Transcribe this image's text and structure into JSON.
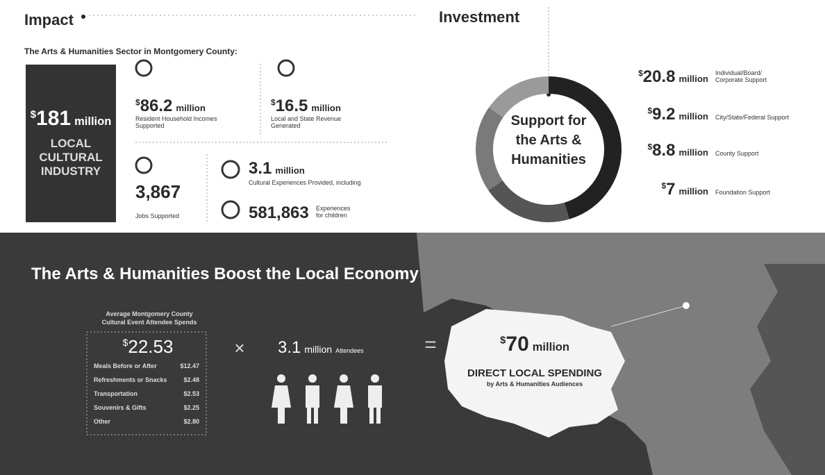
{
  "impact": {
    "title": "Impact",
    "subtitle": "The Arts & Humanities Sector in Montgomery County:",
    "total": {
      "currency": "$",
      "amount": "181",
      "unit": "million",
      "label": [
        "LOCAL",
        "CULTURAL",
        "INDUSTRY"
      ]
    },
    "stats": [
      {
        "currency": "$",
        "amount": "86.2",
        "unit": "million",
        "label": [
          "Resident Household Incomes",
          "Supported"
        ]
      },
      {
        "currency": "$",
        "amount": "16.5",
        "unit": "million",
        "label": [
          "Local and State Revenue",
          "Generated"
        ]
      },
      {
        "amount": "3,867",
        "label": [
          "Jobs Supported"
        ]
      },
      {
        "amount": "3.1",
        "unit": "million",
        "label": [
          "Cultural Experiences Provided, including"
        ]
      },
      {
        "amount": "581,863",
        "label": [
          "Experiences",
          "for children"
        ]
      }
    ]
  },
  "investment": {
    "title": "Investment",
    "center_label": [
      "Support for",
      "the Arts &",
      "Humanities"
    ],
    "sources": [
      {
        "currency": "$",
        "value": 20.8,
        "unit": "million",
        "label": [
          "Individual/Board/",
          "Corporate Support"
        ],
        "color": "#222222"
      },
      {
        "currency": "$",
        "value": 9.2,
        "unit": "million",
        "label": [
          "City/State/Federal Support"
        ],
        "color": "#555555"
      },
      {
        "currency": "$",
        "value": 8.8,
        "unit": "million",
        "label": [
          "County Support"
        ],
        "color": "#7a7a7a"
      },
      {
        "currency": "$",
        "value": 7,
        "unit": "million",
        "label": [
          "Foundation Support"
        ],
        "color": "#9a9a9a"
      }
    ]
  },
  "economy": {
    "title": "The Arts & Humanities Boost the Local Economy",
    "spend_label": [
      "Average Montgomery County",
      "Cultural Event Attendee Spends"
    ],
    "spend_currency": "$",
    "spend_amount": "22.53",
    "breakdown": [
      {
        "label": "Meals Before or After",
        "amount": "$12.47"
      },
      {
        "label": "Refreshments or Snacks",
        "amount": "$2.48"
      },
      {
        "label": "Transportation",
        "amount": "$2.53"
      },
      {
        "label": "Souvenirs & Gifts",
        "amount": "$2.25"
      },
      {
        "label": "Other",
        "amount": "$2.80"
      }
    ],
    "times": "×",
    "attendees_amount": "3.1",
    "attendees_unit": "million",
    "attendees_label": "Attendees",
    "equals": "=",
    "result": {
      "currency": "$",
      "amount": "70",
      "unit": "million",
      "label": "DIRECT LOCAL SPENDING",
      "sublabel": "by Arts & Humanities Audiences"
    }
  }
}
